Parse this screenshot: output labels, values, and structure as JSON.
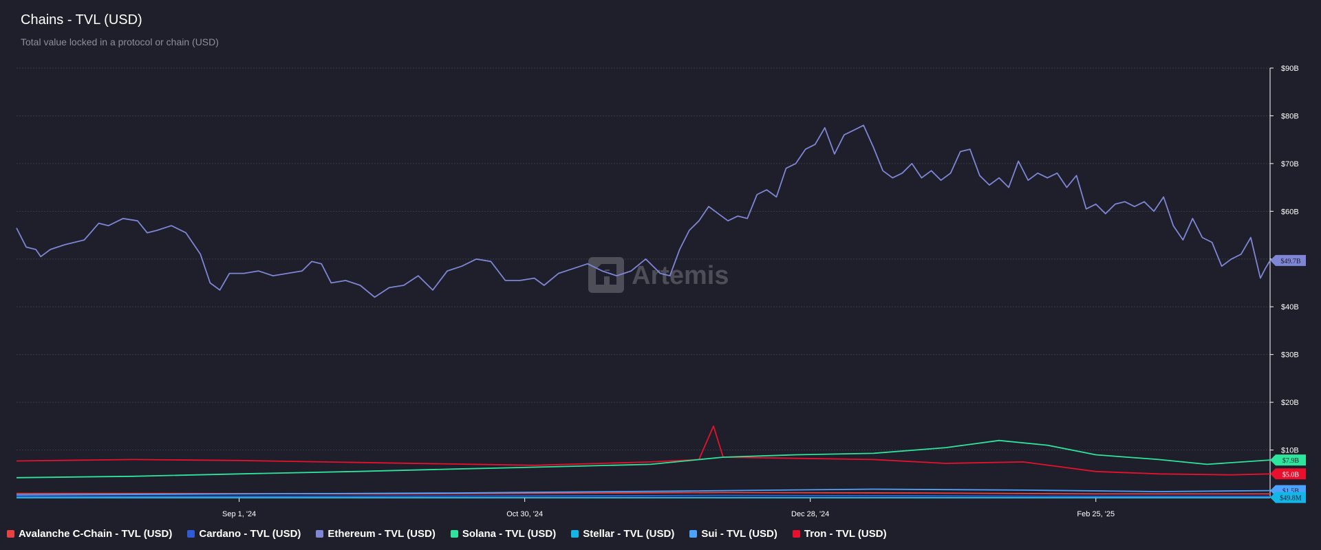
{
  "header": {
    "title": "Chains - TVL (USD)",
    "subtitle": "Total value locked in a protocol or chain (USD)"
  },
  "watermark": {
    "text": "Artemis"
  },
  "colors": {
    "background": "#1e1f2a",
    "grid": "#3a3c4a",
    "axis_text": "#ffffff"
  },
  "chart_data": {
    "type": "line",
    "title": "Chains - TVL (USD)",
    "subtitle": "Total value locked in a protocol or chain (USD)",
    "xlabel": "",
    "ylabel": "",
    "x_range": [
      "2024-07-17",
      "2025-04-02"
    ],
    "x_ticks": [
      {
        "date": "2024-09-01",
        "label": "Sep 1, '24"
      },
      {
        "date": "2024-10-30",
        "label": "Oct 30, '24"
      },
      {
        "date": "2024-12-28",
        "label": "Dec 28, '24"
      },
      {
        "date": "2025-02-25",
        "label": "Feb 25, '25"
      }
    ],
    "y_axis_position": "right",
    "ylim": [
      0,
      90
    ],
    "y_unit": "B USD",
    "y_ticks": [
      {
        "value": 10,
        "label": "$10B"
      },
      {
        "value": 20,
        "label": "$20B"
      },
      {
        "value": 30,
        "label": "$30B"
      },
      {
        "value": 40,
        "label": "$40B"
      },
      {
        "value": 50,
        "label": "$50B"
      },
      {
        "value": 60,
        "label": "$60B"
      },
      {
        "value": 70,
        "label": "$70B"
      },
      {
        "value": 80,
        "label": "$80B"
      },
      {
        "value": 90,
        "label": "$90B"
      }
    ],
    "grid": true,
    "legend_position": "bottom",
    "series": [
      {
        "name": "Avalanche C-Chain - TVL (USD)",
        "color": "#e84142",
        "points": [
          [
            "2024-07-17",
            0.9
          ],
          [
            "2024-08-20",
            0.9
          ],
          [
            "2024-10-01",
            0.8
          ],
          [
            "2024-11-15",
            1.0
          ],
          [
            "2024-12-10",
            1.1
          ],
          [
            "2025-01-20",
            1.0
          ],
          [
            "2025-02-25",
            0.8
          ],
          [
            "2025-04-02",
            0.8
          ]
        ]
      },
      {
        "name": "Cardano - TVL (USD)",
        "color": "#2f5cd4",
        "points": [
          [
            "2024-07-17",
            0.3
          ],
          [
            "2024-09-10",
            0.3
          ],
          [
            "2024-11-15",
            0.4
          ],
          [
            "2024-12-10",
            0.5
          ],
          [
            "2025-01-20",
            0.4
          ],
          [
            "2025-02-25",
            0.3
          ],
          [
            "2025-04-02",
            0.3
          ]
        ]
      },
      {
        "name": "Ethereum - TVL (USD)",
        "color": "#7f86d6",
        "points": [
          [
            "2024-07-17",
            56.5
          ],
          [
            "2024-07-19",
            52.5
          ],
          [
            "2024-07-21",
            52.0
          ],
          [
            "2024-07-22",
            50.5
          ],
          [
            "2024-07-24",
            52.0
          ],
          [
            "2024-07-27",
            53.0
          ],
          [
            "2024-07-31",
            54.0
          ],
          [
            "2024-08-03",
            57.5
          ],
          [
            "2024-08-05",
            57.0
          ],
          [
            "2024-08-08",
            58.5
          ],
          [
            "2024-08-11",
            58.0
          ],
          [
            "2024-08-13",
            55.5
          ],
          [
            "2024-08-15",
            56.0
          ],
          [
            "2024-08-18",
            57.0
          ],
          [
            "2024-08-21",
            55.5
          ],
          [
            "2024-08-24",
            51.0
          ],
          [
            "2024-08-26",
            45.0
          ],
          [
            "2024-08-28",
            43.5
          ],
          [
            "2024-08-30",
            47.0
          ],
          [
            "2024-09-02",
            47.0
          ],
          [
            "2024-09-05",
            47.5
          ],
          [
            "2024-09-08",
            46.5
          ],
          [
            "2024-09-11",
            47.0
          ],
          [
            "2024-09-14",
            47.5
          ],
          [
            "2024-09-16",
            49.5
          ],
          [
            "2024-09-18",
            49.0
          ],
          [
            "2024-09-20",
            45.0
          ],
          [
            "2024-09-23",
            45.5
          ],
          [
            "2024-09-26",
            44.5
          ],
          [
            "2024-09-29",
            42.0
          ],
          [
            "2024-10-02",
            44.0
          ],
          [
            "2024-10-05",
            44.5
          ],
          [
            "2024-10-08",
            46.5
          ],
          [
            "2024-10-11",
            43.5
          ],
          [
            "2024-10-14",
            47.5
          ],
          [
            "2024-10-17",
            48.5
          ],
          [
            "2024-10-20",
            50.0
          ],
          [
            "2024-10-23",
            49.5
          ],
          [
            "2024-10-26",
            45.5
          ],
          [
            "2024-10-29",
            45.5
          ],
          [
            "2024-11-01",
            46.0
          ],
          [
            "2024-11-03",
            44.5
          ],
          [
            "2024-11-06",
            47.0
          ],
          [
            "2024-11-09",
            48.0
          ],
          [
            "2024-11-12",
            49.0
          ],
          [
            "2024-11-15",
            47.5
          ],
          [
            "2024-11-18",
            46.5
          ],
          [
            "2024-11-21",
            47.5
          ],
          [
            "2024-11-24",
            50.0
          ],
          [
            "2024-11-27",
            47.0
          ],
          [
            "2024-11-29",
            46.5
          ],
          [
            "2024-12-01",
            52.0
          ],
          [
            "2024-12-03",
            56.0
          ],
          [
            "2024-12-05",
            58.0
          ],
          [
            "2024-12-07",
            61.0
          ],
          [
            "2024-12-09",
            59.5
          ],
          [
            "2024-12-11",
            58.0
          ],
          [
            "2024-12-13",
            59.0
          ],
          [
            "2024-12-15",
            58.5
          ],
          [
            "2024-12-17",
            63.5
          ],
          [
            "2024-12-19",
            64.5
          ],
          [
            "2024-12-21",
            63.0
          ],
          [
            "2024-12-23",
            69.0
          ],
          [
            "2024-12-25",
            70.0
          ],
          [
            "2024-12-27",
            73.0
          ],
          [
            "2024-12-29",
            74.0
          ],
          [
            "2024-12-31",
            77.5
          ],
          [
            "2025-01-02",
            72.0
          ],
          [
            "2025-01-04",
            76.0
          ],
          [
            "2025-01-06",
            77.0
          ],
          [
            "2025-01-08",
            78.0
          ],
          [
            "2025-01-10",
            73.5
          ],
          [
            "2025-01-12",
            68.5
          ],
          [
            "2025-01-14",
            67.0
          ],
          [
            "2025-01-16",
            68.0
          ],
          [
            "2025-01-18",
            70.0
          ],
          [
            "2025-01-20",
            67.0
          ],
          [
            "2025-01-22",
            68.5
          ],
          [
            "2025-01-24",
            66.5
          ],
          [
            "2025-01-26",
            68.0
          ],
          [
            "2025-01-28",
            72.5
          ],
          [
            "2025-01-30",
            73.0
          ],
          [
            "2025-02-01",
            67.5
          ],
          [
            "2025-02-03",
            65.5
          ],
          [
            "2025-02-05",
            67.0
          ],
          [
            "2025-02-07",
            65.0
          ],
          [
            "2025-02-09",
            70.5
          ],
          [
            "2025-02-11",
            66.5
          ],
          [
            "2025-02-13",
            68.0
          ],
          [
            "2025-02-15",
            67.0
          ],
          [
            "2025-02-17",
            68.0
          ],
          [
            "2025-02-19",
            65.0
          ],
          [
            "2025-02-21",
            67.5
          ],
          [
            "2025-02-23",
            60.5
          ],
          [
            "2025-02-25",
            61.5
          ],
          [
            "2025-02-27",
            59.5
          ],
          [
            "2025-03-01",
            61.5
          ],
          [
            "2025-03-03",
            62.0
          ],
          [
            "2025-03-05",
            61.0
          ],
          [
            "2025-03-07",
            62.0
          ],
          [
            "2025-03-09",
            60.0
          ],
          [
            "2025-03-11",
            63.0
          ],
          [
            "2025-03-13",
            57.0
          ],
          [
            "2025-03-15",
            54.0
          ],
          [
            "2025-03-17",
            58.5
          ],
          [
            "2025-03-19",
            54.5
          ],
          [
            "2025-03-21",
            53.5
          ],
          [
            "2025-03-23",
            48.5
          ],
          [
            "2025-03-25",
            50.0
          ],
          [
            "2025-03-27",
            51.0
          ],
          [
            "2025-03-29",
            54.5
          ],
          [
            "2025-03-31",
            46.0
          ],
          [
            "2025-04-01",
            48.0
          ],
          [
            "2025-04-02",
            49.7
          ]
        ]
      },
      {
        "name": "Solana - TVL (USD)",
        "color": "#2ee59d",
        "points": [
          [
            "2024-07-17",
            4.2
          ],
          [
            "2024-08-10",
            4.5
          ],
          [
            "2024-09-01",
            5.0
          ],
          [
            "2024-09-25",
            5.5
          ],
          [
            "2024-10-15",
            6.0
          ],
          [
            "2024-11-05",
            6.5
          ],
          [
            "2024-11-25",
            7.0
          ],
          [
            "2024-12-10",
            8.5
          ],
          [
            "2024-12-25",
            9.0
          ],
          [
            "2025-01-10",
            9.3
          ],
          [
            "2025-01-25",
            10.5
          ],
          [
            "2025-02-05",
            12.0
          ],
          [
            "2025-02-15",
            11.0
          ],
          [
            "2025-02-25",
            9.0
          ],
          [
            "2025-03-10",
            8.0
          ],
          [
            "2025-03-20",
            7.0
          ],
          [
            "2025-04-02",
            7.9
          ]
        ]
      },
      {
        "name": "Stellar - TVL (USD)",
        "color": "#14b6e7",
        "points": [
          [
            "2024-07-17",
            0.03
          ],
          [
            "2025-04-02",
            0.0498
          ]
        ]
      },
      {
        "name": "Sui - TVL (USD)",
        "color": "#4da2ff",
        "points": [
          [
            "2024-07-17",
            0.6
          ],
          [
            "2024-09-01",
            0.8
          ],
          [
            "2024-10-15",
            1.0
          ],
          [
            "2024-12-01",
            1.4
          ],
          [
            "2025-01-10",
            1.8
          ],
          [
            "2025-02-10",
            1.6
          ],
          [
            "2025-03-10",
            1.3
          ],
          [
            "2025-04-02",
            1.5
          ]
        ]
      },
      {
        "name": "Tron - TVL (USD)",
        "color": "#e8112d",
        "points": [
          [
            "2024-07-17",
            7.7
          ],
          [
            "2024-08-10",
            8.0
          ],
          [
            "2024-09-01",
            7.8
          ],
          [
            "2024-10-01",
            7.3
          ],
          [
            "2024-11-01",
            6.8
          ],
          [
            "2024-11-25",
            7.5
          ],
          [
            "2024-12-05",
            8.0
          ],
          [
            "2024-12-08",
            15.0
          ],
          [
            "2024-12-10",
            8.5
          ],
          [
            "2025-01-10",
            8.0
          ],
          [
            "2025-01-25",
            7.2
          ],
          [
            "2025-02-10",
            7.5
          ],
          [
            "2025-02-25",
            5.5
          ],
          [
            "2025-03-10",
            5.0
          ],
          [
            "2025-03-25",
            4.8
          ],
          [
            "2025-04-02",
            5.0
          ]
        ]
      }
    ],
    "end_labels": [
      {
        "series": "Ethereum - TVL (USD)",
        "value": 49.7,
        "label": "$49.7B",
        "color": "#7f86d6",
        "text_color": "#1e1f2a"
      },
      {
        "series": "Solana - TVL (USD)",
        "value": 7.9,
        "label": "$7.9B",
        "color": "#2ee59d",
        "text_color": "#1e1f2a"
      },
      {
        "series": "Tron - TVL (USD)",
        "value": 5.0,
        "label": "$5.0B",
        "color": "#e8112d",
        "text_color": "#ffffff"
      },
      {
        "series": "Sui - TVL (USD)",
        "value": 1.5,
        "label": "$1.5B",
        "color": "#4da2ff",
        "text_color": "#1e1f2a"
      },
      {
        "series": "Stellar - TVL (USD)",
        "value": 0.0498,
        "label": "$49.8M",
        "color": "#14b6e7",
        "text_color": "#1e1f2a"
      }
    ]
  },
  "legend": [
    {
      "label": "Avalanche C-Chain - TVL (USD)",
      "color": "#e84142"
    },
    {
      "label": "Cardano - TVL (USD)",
      "color": "#2f5cd4"
    },
    {
      "label": "Ethereum - TVL (USD)",
      "color": "#7f86d6"
    },
    {
      "label": "Solana - TVL (USD)",
      "color": "#2ee59d"
    },
    {
      "label": "Stellar - TVL (USD)",
      "color": "#14b6e7"
    },
    {
      "label": "Sui - TVL (USD)",
      "color": "#4da2ff"
    },
    {
      "label": "Tron - TVL (USD)",
      "color": "#e8112d"
    }
  ]
}
